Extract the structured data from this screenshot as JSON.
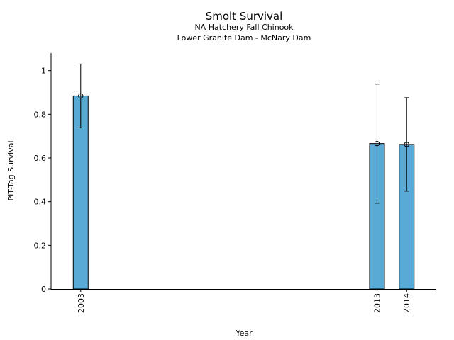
{
  "chart_data": {
    "type": "bar",
    "title": "Smolt Survival",
    "subtitle_lines": [
      "NA Hatchery Fall Chinook",
      "Lower Granite Dam - McNary Dam"
    ],
    "xlabel": "Year",
    "ylabel": "PIT-Tag Survival",
    "x": [
      2003,
      2013,
      2014
    ],
    "x_tick_labels": [
      "2003",
      "2013",
      "2014"
    ],
    "values": [
      0.884,
      0.666,
      0.662
    ],
    "error_low": [
      0.738,
      0.393,
      0.448
    ],
    "error_high": [
      1.03,
      0.938,
      0.876
    ],
    "xlim": [
      2002.0,
      2015.0
    ],
    "ylim": [
      0,
      1.08
    ],
    "y_ticks": [
      0,
      0.2,
      0.4,
      0.6,
      0.8,
      1
    ],
    "y_tick_labels": [
      "0",
      "0.2",
      "0.4",
      "0.6",
      "0.8",
      "1"
    ],
    "bar_color": "#5aaad6",
    "grid": false,
    "legend": "none"
  }
}
